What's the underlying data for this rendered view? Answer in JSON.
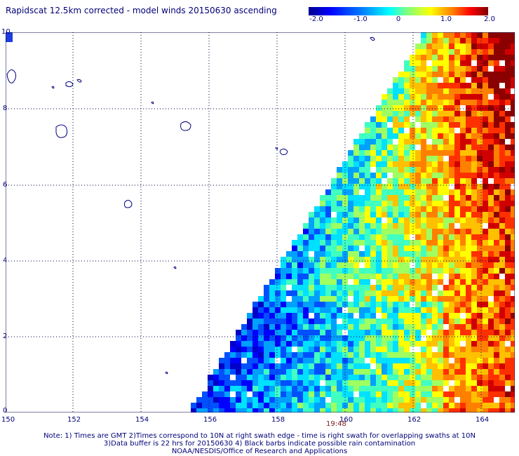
{
  "title": "Rapidscat 12.5km corrected - model winds 20150630 ascending",
  "colorbar": {
    "ticks": [
      "-2.0",
      "-1.0",
      "0",
      "1.0",
      "2.0"
    ],
    "colors": [
      "#00008f",
      "#0000ff",
      "#0080ff",
      "#00ffff",
      "#80ff80",
      "#ffff00",
      "#ff8000",
      "#ff0000",
      "#800000"
    ]
  },
  "map": {
    "lat_labels": [
      "10",
      "8",
      "6",
      "4",
      "2",
      "0"
    ],
    "lon_labels": [
      "150",
      "152",
      "154",
      "156",
      "158",
      "160",
      "162",
      "164"
    ],
    "lat_range": [
      0,
      10
    ],
    "lon_range": [
      150,
      165
    ],
    "time_label": "19:48"
  },
  "notes": {
    "line1": "Note: 1) Times are GMT 2)Times correspond to 10N at right swath edge - time is right swath for overlapping swaths at 10N",
    "line2": "3)Data buffer is 22 hrs for 20150630 4) Black barbs indicate possible rain contamination",
    "line3": "NOAA/NESDIS/Office of Research and Applications"
  }
}
